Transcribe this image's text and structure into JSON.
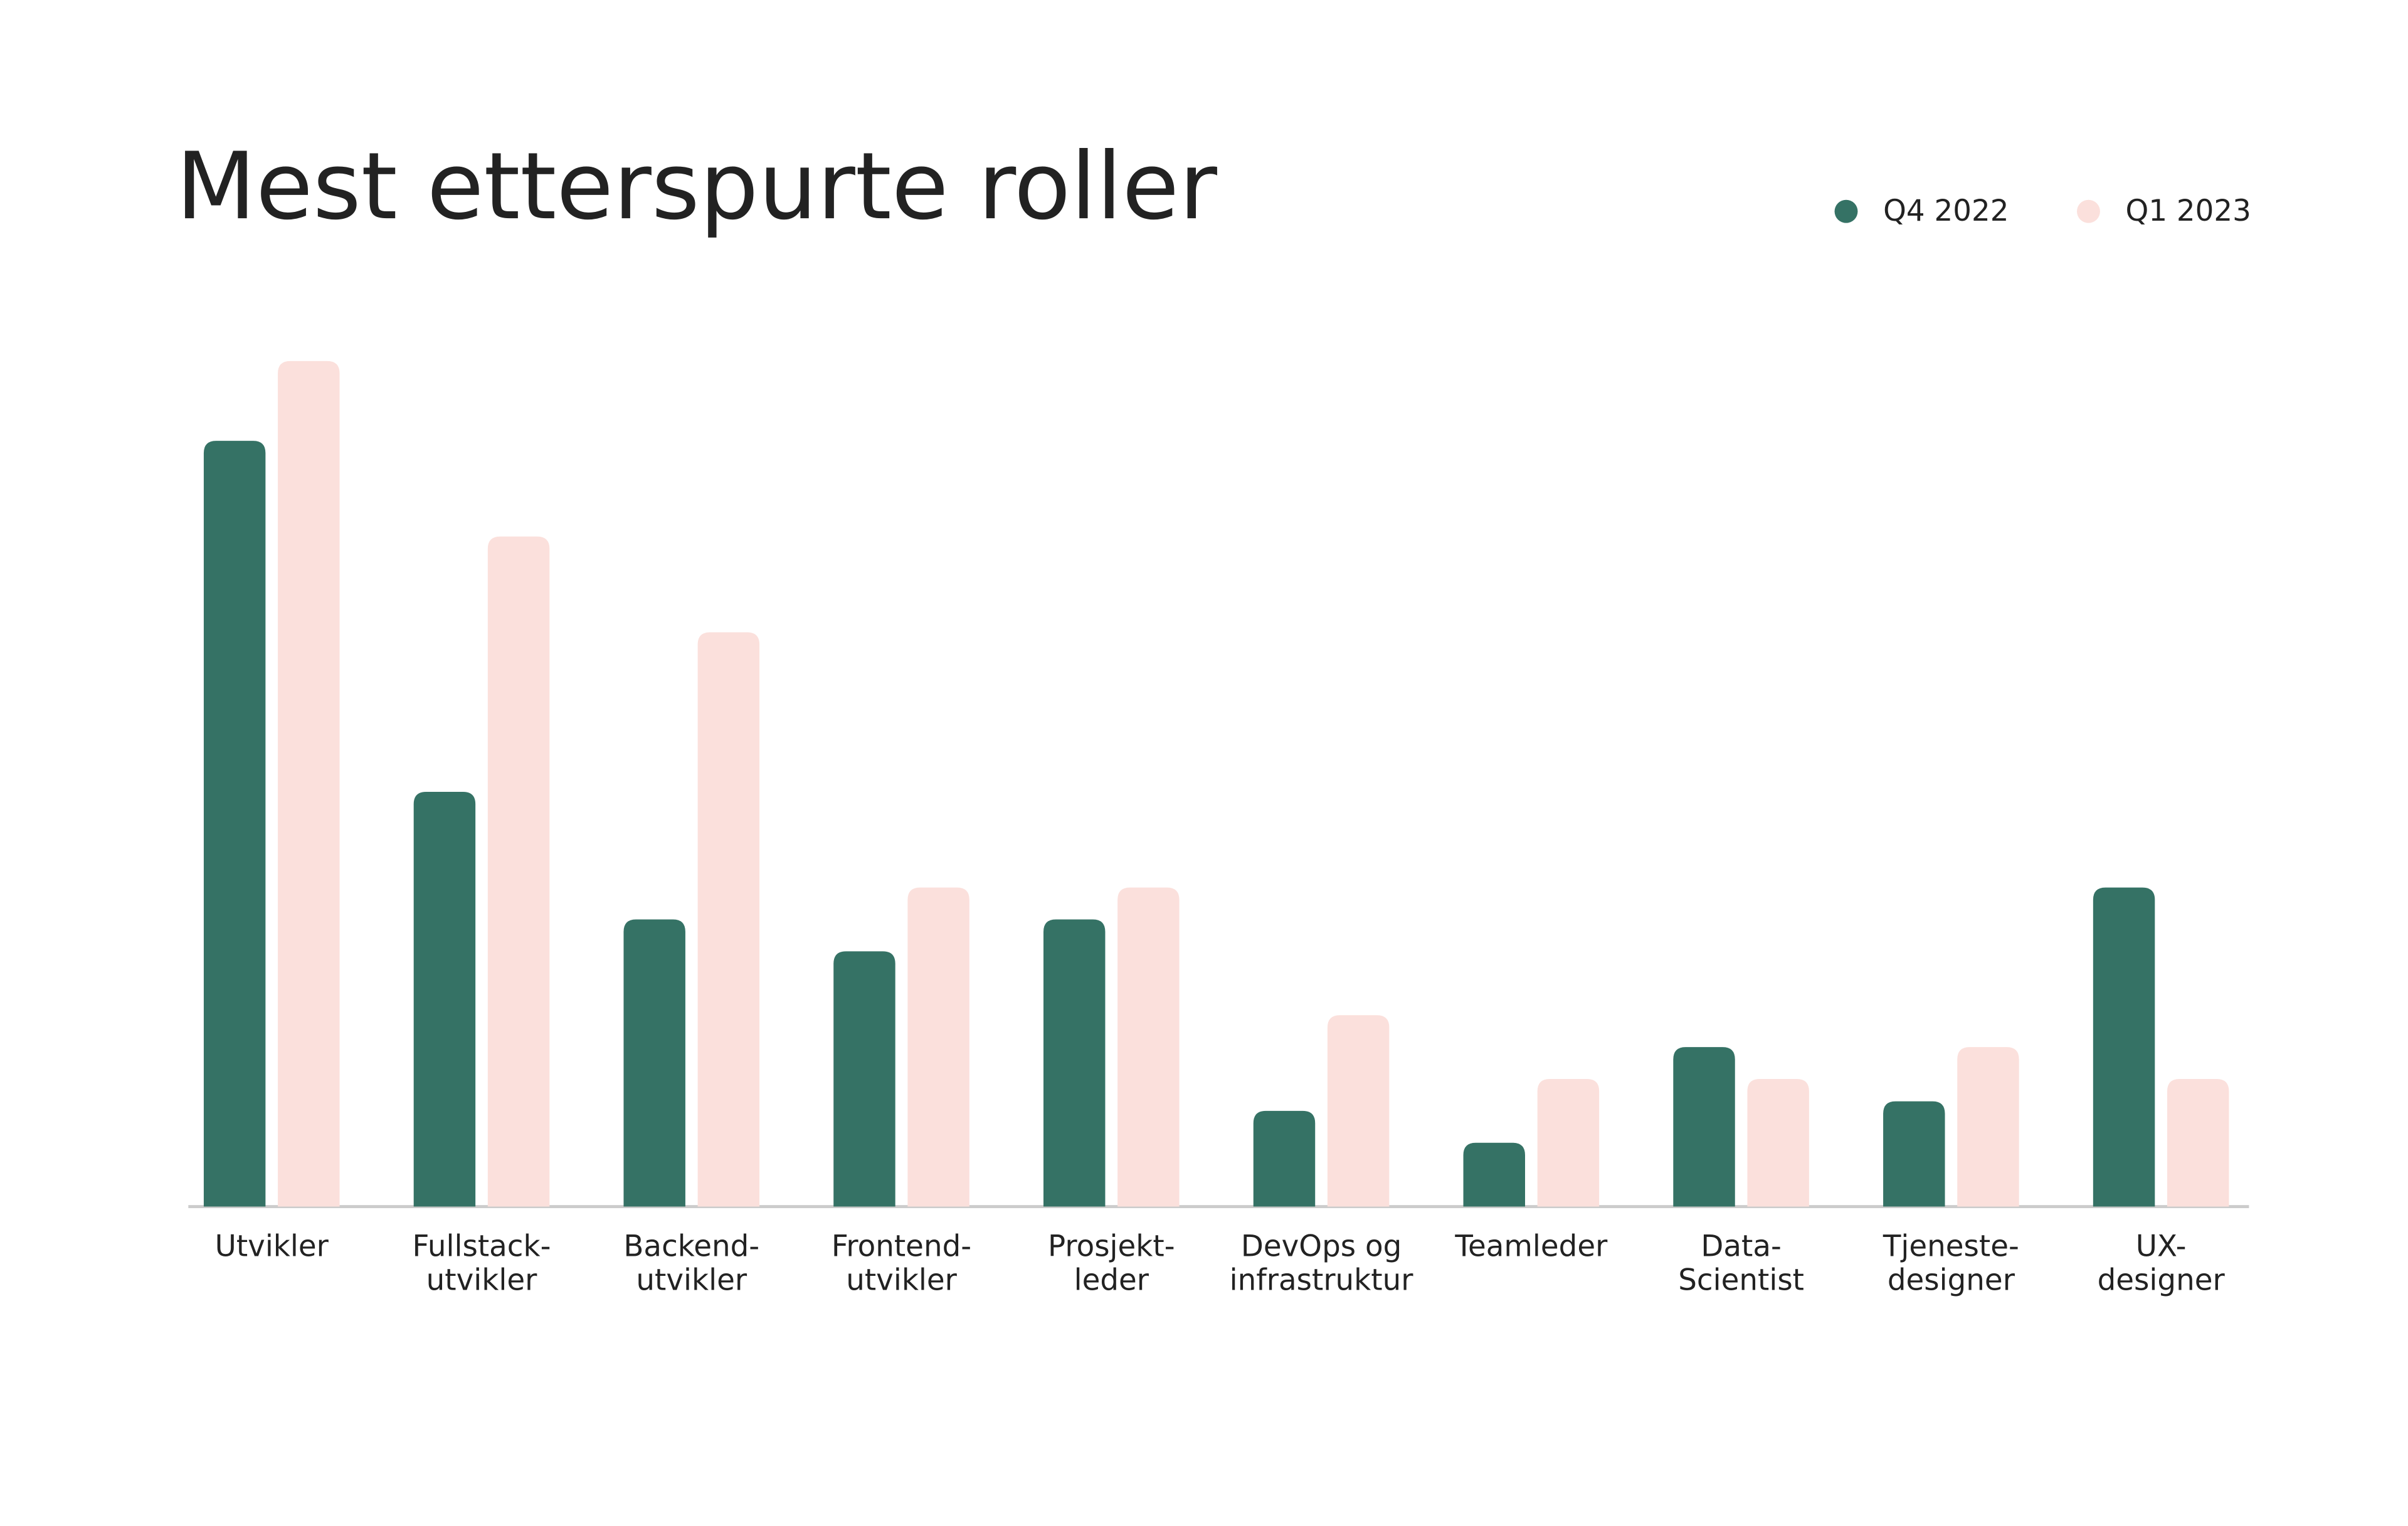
{
  "chart_data": {
    "type": "bar",
    "title": "Mest etterspurte roller",
    "categories": [
      [
        "Utvikler"
      ],
      [
        "Fullstack-",
        "utvikler"
      ],
      [
        "Backend-",
        "utvikler"
      ],
      [
        "Frontend-",
        "utvikler"
      ],
      [
        "Prosjekt-",
        "leder"
      ],
      [
        "DevOps og",
        "infrastruktur"
      ],
      [
        "Teamleder"
      ],
      [
        "Data-",
        "Scientist"
      ],
      [
        "Tjeneste-",
        "designer"
      ],
      [
        "UX-",
        "designer"
      ]
    ],
    "series": [
      {
        "name": "Q4 2022",
        "color": "#357265",
        "values": [
          24,
          13,
          9,
          8,
          9,
          3,
          2,
          5,
          3.3,
          10
        ]
      },
      {
        "name": "Q1 2023",
        "color": "#fbe0dc",
        "values": [
          26.5,
          21,
          18,
          10,
          10,
          6,
          4,
          4,
          5,
          4
        ]
      }
    ],
    "legend": "top-right"
  }
}
